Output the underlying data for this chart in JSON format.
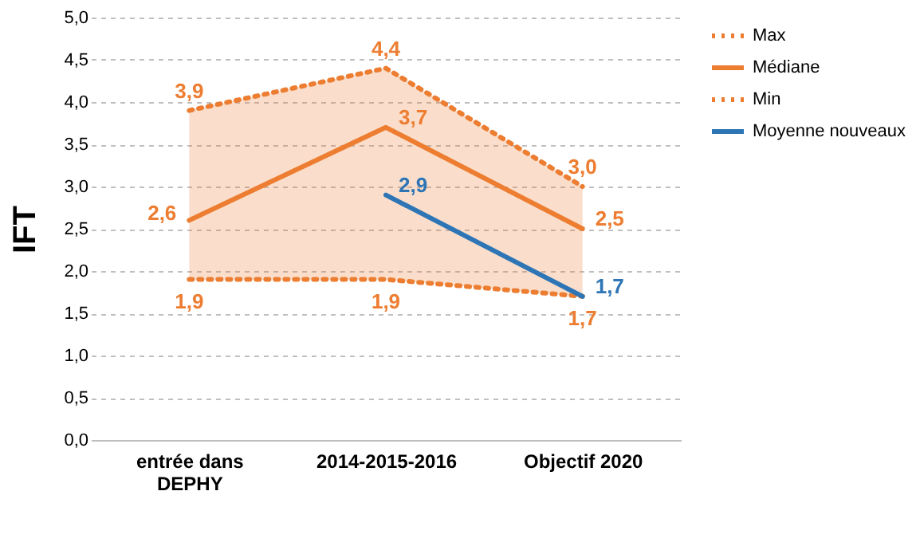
{
  "chart_data": {
    "type": "line",
    "ylabel": "IFT",
    "categories": [
      "entrée dans\nDEPHY",
      "2014-2015-2016",
      "Objectif 2020"
    ],
    "ylim": [
      0,
      5
    ],
    "yticks": [
      {
        "value": 0,
        "label": "0,0"
      },
      {
        "value": 0.5,
        "label": "0,5"
      },
      {
        "value": 1,
        "label": "1,0"
      },
      {
        "value": 1.5,
        "label": "1,5"
      },
      {
        "value": 2,
        "label": "2,0"
      },
      {
        "value": 2.5,
        "label": "2,5"
      },
      {
        "value": 3,
        "label": "3,0"
      },
      {
        "value": 3.5,
        "label": "3,5"
      },
      {
        "value": 4,
        "label": "4,0"
      },
      {
        "value": 4.5,
        "label": "4,5"
      },
      {
        "value": 5,
        "label": "5,0"
      }
    ],
    "grid": "y",
    "legend": "right",
    "marker": "none",
    "series": [
      {
        "name": "Max",
        "color": "#ed7d31",
        "line_style": "dotted",
        "values": [
          3.9,
          4.4,
          3.0
        ],
        "value_labels": [
          "3,9",
          "4,4",
          "3,0"
        ]
      },
      {
        "name": "Médiane",
        "color": "#ed7d31",
        "line_style": "solid",
        "values": [
          2.6,
          3.7,
          2.5
        ],
        "value_labels": [
          "2,6",
          "3,7",
          "2,5"
        ],
        "lower": [
          1.9,
          1.9,
          1.7
        ],
        "upper": [
          3.9,
          4.4,
          3.0
        ]
      },
      {
        "name": "Min",
        "color": "#ed7d31",
        "line_style": "dotted",
        "values": [
          1.9,
          1.9,
          1.7
        ],
        "value_labels": [
          "1,9",
          "1,9",
          "1,7"
        ]
      },
      {
        "name": "Moyenne nouveaux",
        "color": "#2e75b6",
        "line_style": "solid",
        "values": [
          null,
          2.9,
          1.7
        ],
        "value_labels": [
          null,
          "2,9",
          "1,7"
        ]
      }
    ]
  }
}
